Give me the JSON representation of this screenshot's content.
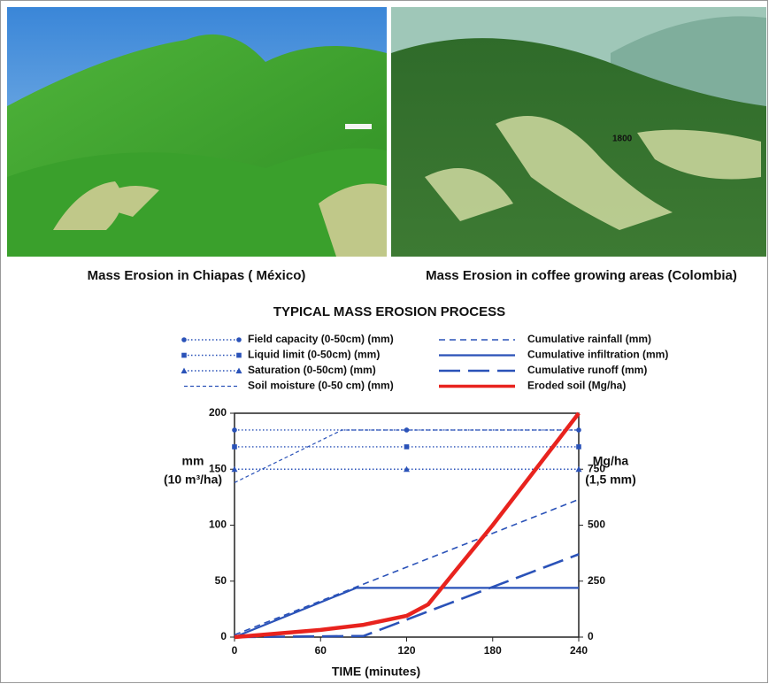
{
  "photos": [
    {
      "caption": "Mass Erosion in Chiapas ( México)"
    },
    {
      "caption": "Mass Erosion in coffee growing  areas (Colombia)",
      "marker": "1800"
    }
  ],
  "chart_data": {
    "type": "line",
    "title": "TYPICAL MASS EROSION PROCESS",
    "x_label": "TIME (minutes)",
    "y_label": [
      "mm",
      "(10 m³/ha)"
    ],
    "y_label_color": "#2a3aa8",
    "y2_label": [
      "Mg/ha",
      "(1,5 mm)"
    ],
    "y2_label_color": "#e8231e",
    "xlim": [
      0,
      240
    ],
    "xticks": [
      0,
      60,
      120,
      180,
      240
    ],
    "ylim": [
      0,
      200
    ],
    "yticks": [
      0,
      50,
      100,
      150,
      200
    ],
    "y2lim": [
      0,
      1000
    ],
    "y2ticks": [
      0,
      250,
      500,
      750
    ],
    "series": [
      {
        "name": "Field capacity (0-50cm) (mm)",
        "color": "#2a52b8",
        "style": "dotted",
        "marker": "circle",
        "x": [
          0,
          120,
          240
        ],
        "values": [
          185,
          185,
          185
        ]
      },
      {
        "name": "Liquid limit (0-50cm) (mm)",
        "color": "#2a52b8",
        "style": "dotted",
        "marker": "square",
        "x": [
          0,
          120,
          240
        ],
        "values": [
          170,
          170,
          170
        ]
      },
      {
        "name": "Saturation  (0-50cm) (mm)",
        "color": "#2a52b8",
        "style": "dotted",
        "marker": "triangle",
        "x": [
          0,
          120,
          240
        ],
        "values": [
          150,
          150,
          150
        ]
      },
      {
        "name": "Soil moisture (0-50 cm) (mm)",
        "color": "#2a52b8",
        "style": "short-dash",
        "x": [
          0,
          75,
          240
        ],
        "values": [
          138,
          185,
          185
        ]
      },
      {
        "name": "Cumulative rainfall (mm)",
        "color": "#2a52b8",
        "style": "dashed",
        "x": [
          0,
          240
        ],
        "values": [
          2,
          123
        ]
      },
      {
        "name": "Cumulative infiltration (mm)",
        "color": "#2a52b8",
        "style": "solid",
        "x": [
          0,
          85,
          240
        ],
        "values": [
          0,
          44,
          44
        ]
      },
      {
        "name": "Cumulative runoff (mm)",
        "color": "#2a52b8",
        "style": "long-dash",
        "x": [
          0,
          90,
          240
        ],
        "values": [
          0,
          1,
          74
        ]
      },
      {
        "name": "Eroded soil (Mg/ha)",
        "color": "#e8231e",
        "style": "thick",
        "axis": "y2",
        "x": [
          0,
          60,
          90,
          120,
          135,
          180,
          240
        ],
        "values": [
          0,
          32,
          55,
          95,
          146,
          500,
          1000
        ]
      }
    ]
  }
}
